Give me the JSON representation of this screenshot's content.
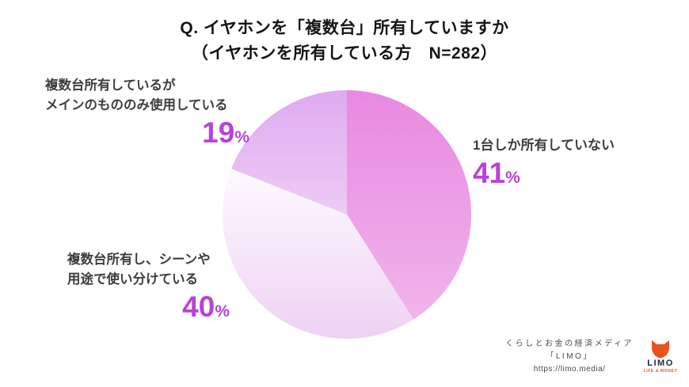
{
  "title": {
    "line1": "Q. イヤホンを「複数台」所有していますか",
    "line2": "（イヤホンを所有している方　N=282）"
  },
  "percent_sign": "%",
  "colors": {
    "percent_text": "#b843d8",
    "label_text": "#3d3d3d",
    "background": "#ffffff",
    "logo_orange": "#e8541e",
    "logo_navy": "#182643"
  },
  "chart_data": {
    "type": "pie",
    "title": "Q. イヤホンを「複数台」所有していますか（イヤホンを所有している方　N=282）",
    "n": 282,
    "start_angle_deg": 0,
    "direction": "clockwise",
    "legend_position": "labels-around-pie",
    "slices": [
      {
        "label": "1台しか所有していない",
        "label_lines": [
          "1台しか所有していない"
        ],
        "value": 41,
        "gradient": [
          "#e989e2",
          "#f0b4ea"
        ]
      },
      {
        "label": "複数台所有し、シーンや用途で使い分けている",
        "label_lines": [
          "複数台所有し、シーンや",
          "用途で使い分けている"
        ],
        "value": 40,
        "gradient": [
          "#fdfafe",
          "#eed2f4"
        ]
      },
      {
        "label": "複数台所有しているがメインのもののみ使用している",
        "label_lines": [
          "複数台所有しているが",
          "メインのもののみ使用している"
        ],
        "value": 19,
        "gradient": [
          "#dfaaf0",
          "#edccf4"
        ]
      }
    ]
  },
  "footer": {
    "credit_line1": "くらしとお金の経済メディア",
    "credit_line2": "「LIMO」",
    "credit_line3": "https://limo.media/",
    "logo_name": "LIMO",
    "logo_sub": "LIFE & MONEY"
  }
}
